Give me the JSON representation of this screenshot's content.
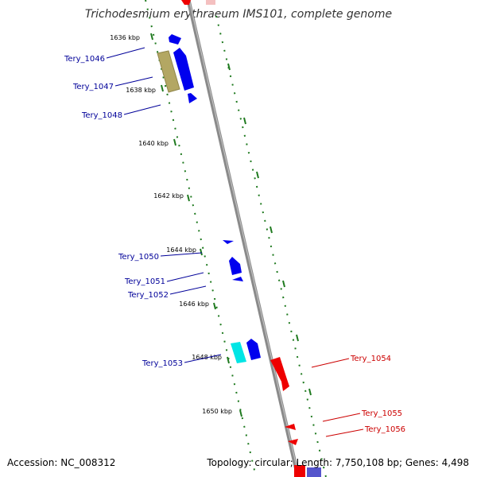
{
  "title": "Trichodesmium erythraeum IMS101, complete genome",
  "footer": {
    "accession": "Accession: NC_008312",
    "summary": "Topology: circular; Length: 7,750,108 bp; Genes: 4,498"
  },
  "colors": {
    "backbone": "#8a8a8a",
    "tick_dots": "#1f7a1f",
    "forward_gene": "#0000ee",
    "reverse_gene": "#ee0000",
    "olive_feature": "#b3a763",
    "cyan_feature": "#00e5e5",
    "left_label": "#000099",
    "right_label": "#cc0000"
  },
  "ticks": [
    "1636 kbp",
    "1638 kbp",
    "1640 kbp",
    "1642 kbp",
    "1644 kbp",
    "1646 kbp",
    "1648 kbp",
    "1650 kbp"
  ],
  "genes_left": [
    "Tery_1046",
    "Tery_1047",
    "Tery_1048",
    "Tery_1050",
    "Tery_1051",
    "Tery_1052",
    "Tery_1053"
  ],
  "genes_right": [
    "Tery_1054",
    "Tery_1055",
    "Tery_1056"
  ]
}
